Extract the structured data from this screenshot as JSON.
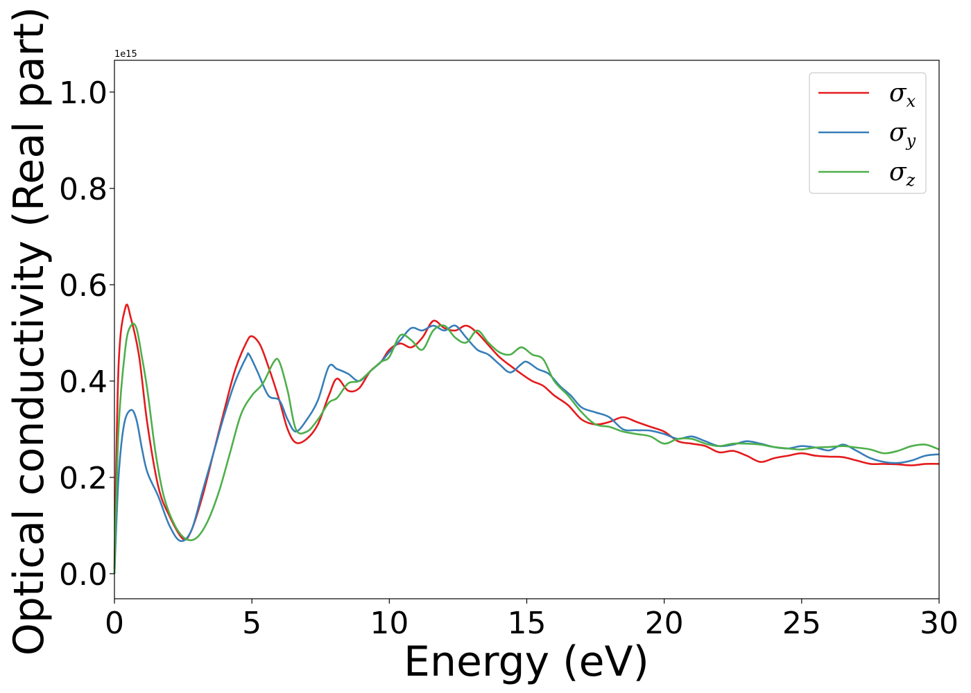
{
  "chart_data": {
    "type": "line",
    "title": "",
    "xlabel": "Energy (eV)",
    "ylabel": "Optical conductivity (Real part)",
    "y_offset_label": "1e15",
    "xlim": [
      0,
      30
    ],
    "ylim": [
      -0.052,
      1.066
    ],
    "xticks": [
      0,
      5,
      10,
      15,
      20,
      25,
      30
    ],
    "xtick_labels": [
      "0",
      "5",
      "10",
      "15",
      "20",
      "25",
      "30"
    ],
    "yticks": [
      0.0,
      0.2,
      0.4,
      0.6,
      0.8,
      1.0
    ],
    "ytick_labels": [
      "0.0",
      "0.2",
      "0.4",
      "0.6",
      "0.8",
      "1.0"
    ],
    "grid": false,
    "legend_position": "top-right",
    "series": [
      {
        "name": "σ_x",
        "legend_symbol": "σ",
        "legend_subscript": "x",
        "color": "#e41a1c",
        "x": [
          0,
          0.15,
          0.4,
          0.6,
          0.9,
          1.2,
          1.6,
          2.0,
          2.5,
          2.8,
          3.2,
          3.6,
          4.0,
          4.4,
          4.8,
          5.0,
          5.3,
          5.6,
          6.0,
          6.3,
          6.6,
          7.0,
          7.4,
          7.8,
          8.1,
          8.5,
          8.9,
          9.3,
          9.7,
          10.0,
          10.4,
          10.8,
          11.2,
          11.6,
          12.0,
          12.4,
          12.8,
          13.2,
          13.6,
          14.0,
          14.4,
          14.8,
          15.2,
          15.6,
          16.0,
          16.5,
          17.0,
          17.5,
          18.0,
          18.5,
          19.0,
          19.5,
          20.0,
          20.5,
          21.0,
          21.5,
          22.0,
          22.5,
          23.0,
          23.5,
          24.0,
          24.5,
          25.0,
          25.5,
          26.0,
          26.5,
          27.0,
          27.5,
          28.0,
          28.5,
          29.0,
          29.5,
          30.0
        ],
        "values": [
          0.01,
          0.43,
          0.553,
          0.53,
          0.45,
          0.31,
          0.18,
          0.12,
          0.072,
          0.09,
          0.16,
          0.25,
          0.34,
          0.425,
          0.48,
          0.493,
          0.475,
          0.43,
          0.36,
          0.3,
          0.272,
          0.28,
          0.31,
          0.37,
          0.405,
          0.38,
          0.385,
          0.42,
          0.44,
          0.465,
          0.478,
          0.47,
          0.49,
          0.525,
          0.51,
          0.505,
          0.515,
          0.5,
          0.475,
          0.45,
          0.432,
          0.415,
          0.4,
          0.39,
          0.37,
          0.35,
          0.32,
          0.31,
          0.315,
          0.325,
          0.315,
          0.305,
          0.295,
          0.275,
          0.27,
          0.265,
          0.252,
          0.255,
          0.245,
          0.232,
          0.24,
          0.245,
          0.25,
          0.245,
          0.243,
          0.242,
          0.235,
          0.228,
          0.228,
          0.227,
          0.225,
          0.228,
          0.228
        ]
      },
      {
        "name": "σ_y",
        "legend_symbol": "σ",
        "legend_subscript": "y",
        "color": "#377eb8",
        "x": [
          0,
          0.15,
          0.35,
          0.6,
          0.8,
          1.0,
          1.2,
          1.6,
          2.0,
          2.4,
          2.8,
          3.2,
          3.6,
          4.0,
          4.4,
          4.8,
          4.9,
          5.2,
          5.6,
          6.0,
          6.3,
          6.6,
          7.0,
          7.4,
          7.8,
          8.1,
          8.5,
          8.9,
          9.3,
          9.7,
          10.0,
          10.4,
          10.8,
          11.2,
          11.6,
          12.0,
          12.4,
          12.8,
          13.2,
          13.6,
          14.0,
          14.4,
          14.8,
          15.0,
          15.4,
          15.8,
          16.2,
          16.6,
          17.0,
          17.5,
          18.0,
          18.5,
          19.0,
          19.5,
          20.0,
          20.5,
          21.0,
          21.5,
          22.0,
          22.5,
          23.0,
          23.5,
          24.0,
          24.5,
          25.0,
          25.5,
          26.0,
          26.5,
          27.0,
          27.5,
          28.0,
          28.5,
          29.0,
          29.5,
          30.0
        ],
        "values": [
          0.0,
          0.2,
          0.31,
          0.34,
          0.32,
          0.26,
          0.21,
          0.16,
          0.1,
          0.068,
          0.09,
          0.17,
          0.25,
          0.33,
          0.4,
          0.45,
          0.455,
          0.42,
          0.37,
          0.36,
          0.32,
          0.295,
          0.32,
          0.36,
          0.43,
          0.425,
          0.415,
          0.4,
          0.42,
          0.44,
          0.46,
          0.485,
          0.51,
          0.505,
          0.515,
          0.505,
          0.515,
          0.49,
          0.465,
          0.455,
          0.435,
          0.418,
          0.435,
          0.44,
          0.425,
          0.415,
          0.39,
          0.37,
          0.345,
          0.335,
          0.325,
          0.3,
          0.298,
          0.297,
          0.29,
          0.28,
          0.285,
          0.275,
          0.265,
          0.268,
          0.275,
          0.27,
          0.263,
          0.26,
          0.265,
          0.262,
          0.256,
          0.268,
          0.255,
          0.24,
          0.232,
          0.23,
          0.235,
          0.245,
          0.248
        ]
      },
      {
        "name": "σ_z",
        "legend_symbol": "σ",
        "legend_subscript": "z",
        "color": "#4daf4a",
        "x": [
          0,
          0.15,
          0.4,
          0.6,
          0.8,
          1.0,
          1.2,
          1.5,
          1.8,
          2.2,
          2.6,
          3.0,
          3.4,
          3.8,
          4.2,
          4.6,
          5.0,
          5.4,
          5.8,
          6.0,
          6.3,
          6.6,
          7.0,
          7.4,
          7.8,
          8.1,
          8.5,
          8.9,
          9.3,
          9.7,
          10.0,
          10.4,
          10.8,
          11.2,
          11.6,
          12.0,
          12.4,
          12.8,
          13.2,
          13.6,
          14.0,
          14.4,
          14.8,
          15.2,
          15.6,
          16.0,
          16.5,
          17.0,
          17.5,
          18.0,
          18.5,
          19.0,
          19.5,
          20.0,
          20.5,
          21.0,
          21.5,
          22.0,
          22.5,
          23.0,
          23.5,
          24.0,
          24.5,
          25.0,
          25.5,
          26.0,
          26.5,
          27.0,
          27.5,
          28.0,
          28.5,
          29.0,
          29.5,
          30.0
        ],
        "values": [
          0.0,
          0.3,
          0.47,
          0.515,
          0.51,
          0.45,
          0.38,
          0.25,
          0.16,
          0.1,
          0.072,
          0.075,
          0.11,
          0.17,
          0.25,
          0.33,
          0.37,
          0.395,
          0.44,
          0.44,
          0.38,
          0.3,
          0.295,
          0.32,
          0.355,
          0.365,
          0.395,
          0.4,
          0.42,
          0.44,
          0.45,
          0.495,
          0.485,
          0.465,
          0.505,
          0.515,
          0.49,
          0.48,
          0.505,
          0.48,
          0.46,
          0.455,
          0.47,
          0.455,
          0.445,
          0.4,
          0.37,
          0.335,
          0.31,
          0.305,
          0.295,
          0.29,
          0.285,
          0.27,
          0.28,
          0.28,
          0.27,
          0.265,
          0.27,
          0.27,
          0.268,
          0.263,
          0.26,
          0.258,
          0.262,
          0.263,
          0.265,
          0.262,
          0.258,
          0.25,
          0.255,
          0.265,
          0.268,
          0.258
        ]
      }
    ]
  }
}
